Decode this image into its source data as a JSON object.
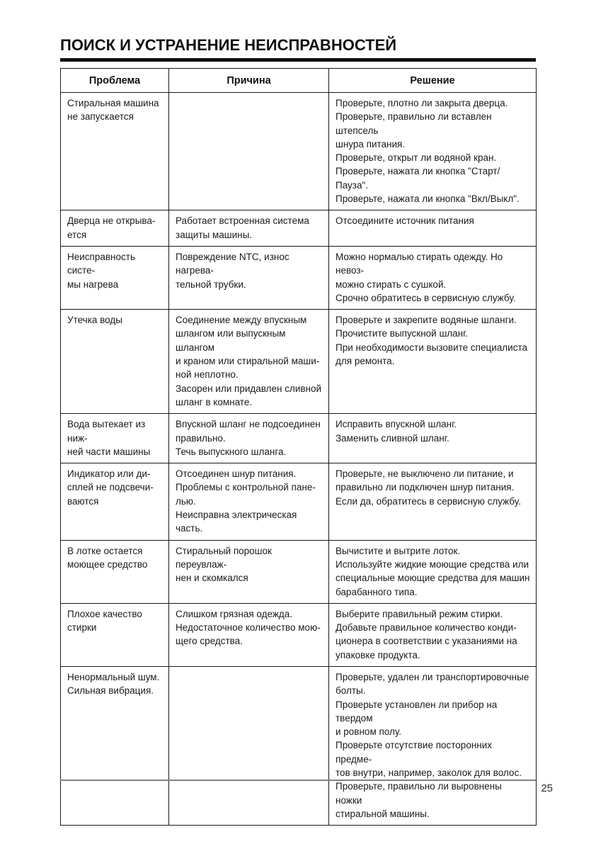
{
  "page": {
    "title": "ПОИСК И УСТРАНЕНИЕ НЕИСПРАВНОСТЕЙ",
    "page_number": "25"
  },
  "table": {
    "headers": {
      "problem": "Проблема",
      "cause": "Причина",
      "solution": "Решение"
    },
    "rows": [
      {
        "problem": "Стиральная машина\nне запускается",
        "cause": "",
        "solution": "Проверьте, плотно ли закрыта дверца.\nПроверьте, правильно ли вставлен штепсель\nшнура питания.\nПроверьте, открыт ли водяной кран.\nПроверьте, нажата ли кнопка \"Старт/Пауза\".\nПроверьте, нажата ли кнопка \"Вкл/Выкл\"."
      },
      {
        "problem": "Дверца не открыва-\nется",
        "cause": "Работает встроенная система\nзащиты машины.",
        "solution": "Отсоедините источник питания"
      },
      {
        "problem": "Неисправность систе-\nмы нагрева",
        "cause": "Повреждение NTC, износ нагрева-\nтельной трубки.",
        "solution": "Можно нормалью стирать одежду. Но невоз-\nможно стирать с сушкой.\nСрочно обратитесь в сервисную службу."
      },
      {
        "problem": "Утечка воды",
        "cause": "Соединение между впускным\nшлангом или выпускным шлангом\nи краном или стиральной маши-\nной неплотно.\nЗасорен или придавлен сливной\nшланг в комнате.",
        "solution": "Проверьте и закрепите водяные шланги.\nПрочистите выпускной шланг.\nПри необходимости вызовите специалиста\nдля ремонта."
      },
      {
        "problem": "Вода вытекает из ниж-\nней части машины",
        "cause": "Впускной шланг не подсоединен\nправильно.\nТечь выпускного шланга.",
        "solution": "Исправить впускной шланг.\nЗаменить сливной шланг."
      },
      {
        "problem": "Индикатор или ди-\nсплей не подсвечи-\nваются",
        "cause": "Отсоединен шнур питания.\nПроблемы с контрольной пане-\nлью.\nНеисправна электрическая часть.",
        "solution": "Проверьте, не выключено ли питание, и\nправильно ли подключен шнур питания.\nЕсли да, обратитесь в сервисную службу."
      },
      {
        "problem": "В лотке остается\nмоющее средство",
        "cause": "Стиральный порошок переувлаж-\nнен и скомкался",
        "solution": "Вычистите и вытрите лоток.\nИспользуйте жидкие моющие средства или\nспециальные моющие средства для машин\nбарабанного типа."
      },
      {
        "problem": "Плохое качество\nстирки",
        "cause": "Слишком грязная одежда.\nНедостаточное количество мою-\nщего средства.",
        "solution": "Выберите правильный режим стирки.\nДобавьте правильное количество конди-\nционера в соответствии с указаниями на\nупаковке продукта."
      },
      {
        "problem": "Ненормальный шум.\nСильная вибрация.",
        "cause": "",
        "solution": "Проверьте, удален ли транспортировочные\nболты.\nПроверьте установлен ли прибор на твердом\nи ровном полу.\nПроверьте отсутствие посторонних предме-\nтов внутри, например, заколок для волос.\nПроверьте, правильно ли выровнены ножки\nстиральной машины."
      }
    ]
  }
}
